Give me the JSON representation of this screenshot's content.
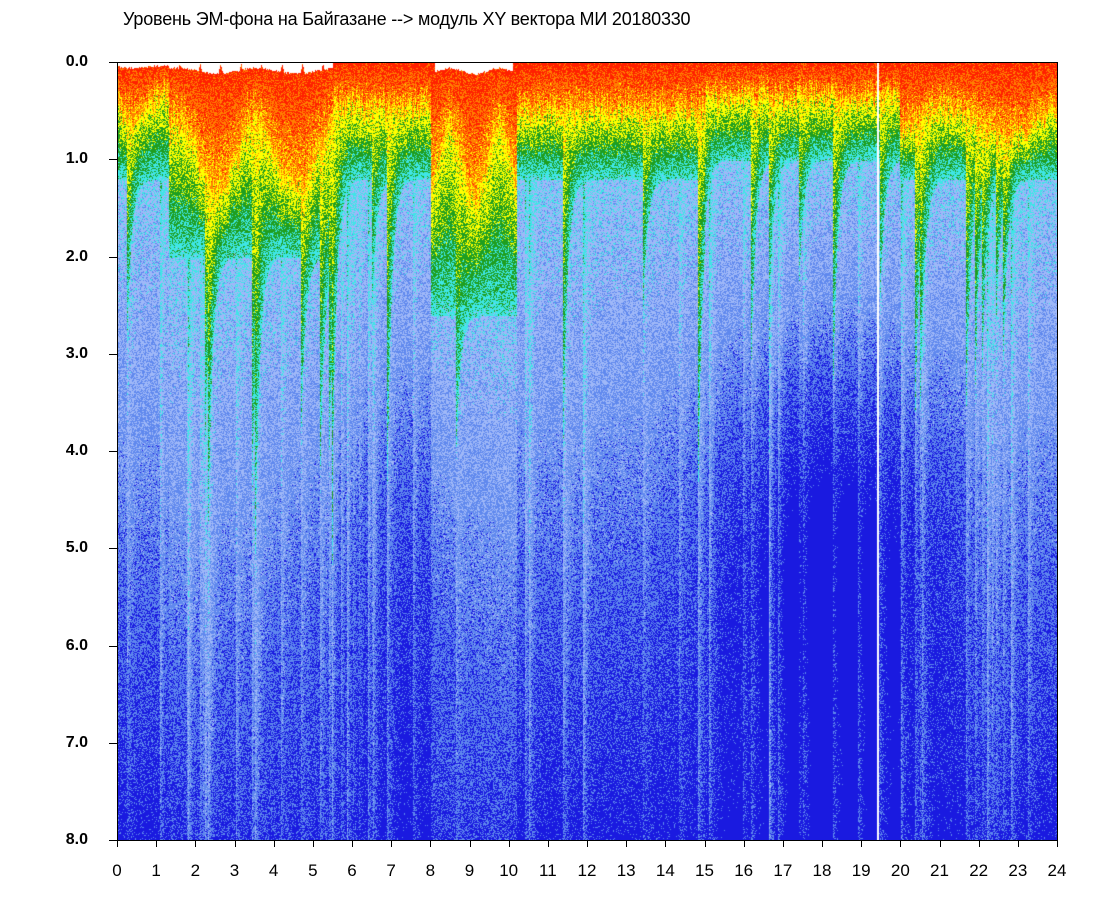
{
  "chart_data": {
    "type": "heatmap",
    "title": "Уровень ЭМ-фона на Байгазане  -->  модуль XY вектора МИ  20180330",
    "xlabel": "",
    "ylabel": "",
    "xlim": [
      0,
      24
    ],
    "ylim": [
      0,
      8
    ],
    "y_inverted": true,
    "x_ticks": [
      "0",
      "1",
      "2",
      "3",
      "4",
      "5",
      "6",
      "7",
      "8",
      "9",
      "10",
      "11",
      "12",
      "13",
      "14",
      "15",
      "16",
      "17",
      "18",
      "19",
      "20",
      "21",
      "22",
      "23",
      "24"
    ],
    "y_ticks": [
      "0.0",
      "1.0",
      "2.0",
      "3.0",
      "4.0",
      "5.0",
      "6.0",
      "7.0",
      "8.0"
    ],
    "colormap": [
      "#1a1ae0",
      "#5f88ee",
      "#9fb8f8",
      "#3ee6e6",
      "#1f9e1f",
      "#ffff00",
      "#ff8000",
      "#ff2000"
    ],
    "grid": false,
    "legend": "none"
  }
}
